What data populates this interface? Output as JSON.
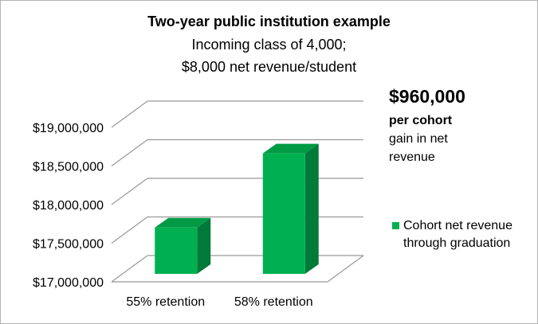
{
  "title": "Two-year public institution example",
  "subtitle_line1": "Incoming class of 4,000;",
  "subtitle_line2": "$8,000 net revenue/student",
  "annotation": {
    "amount": "$960,000",
    "per": "per cohort",
    "line1": "gain in net",
    "line2": "revenue"
  },
  "legend": {
    "line1": "Cohort net revenue",
    "line2": "through graduation",
    "color": "#00b050"
  },
  "colors": {
    "bar_front": "#00b050",
    "bar_side": "#007a38",
    "bar_top": "#009a45",
    "grid": "#999999"
  },
  "chart_data": {
    "type": "bar",
    "categories": [
      "55% retention",
      "58% retention"
    ],
    "series": [
      {
        "name": "Cohort net revenue through graduation",
        "values": [
          17600000,
          18560000
        ]
      }
    ],
    "ylim": [
      17000000,
      19000000
    ],
    "yticks": [
      17000000,
      17500000,
      18000000,
      18500000,
      19000000
    ],
    "ytick_labels": [
      "$17,000,000",
      "$17,500,000",
      "$18,000,000",
      "$18,500,000",
      "$19,000,000"
    ],
    "grid": true,
    "legend_position": "right",
    "three_d": true
  }
}
